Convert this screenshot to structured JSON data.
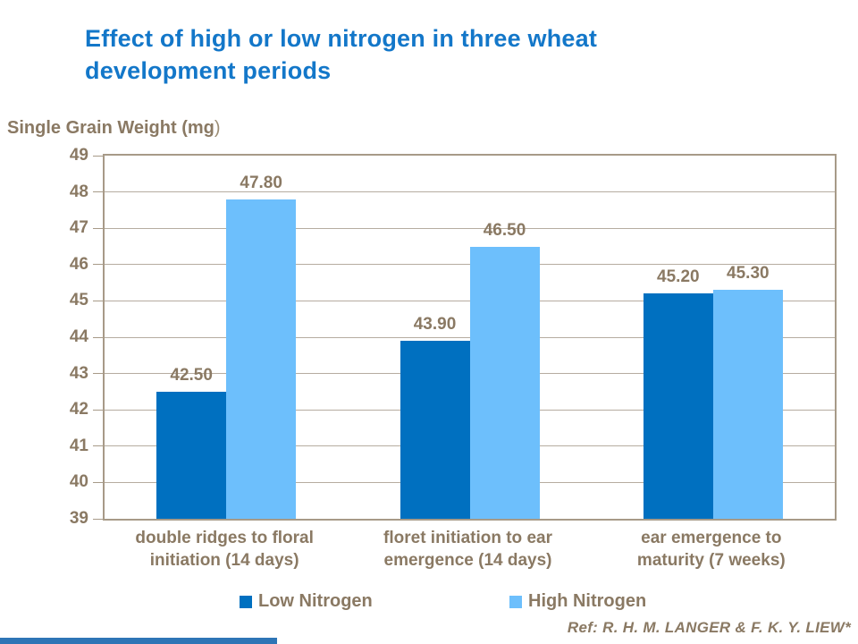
{
  "title": "Effect of high or low nitrogen in three wheat\ndevelopment periods",
  "axis_title": {
    "main": "Single Grain Weight (mg",
    "paren": ")"
  },
  "chart_data": {
    "type": "bar",
    "title": "Effect of high or low nitrogen in three wheat development periods",
    "ylabel": "Single Grain Weight (mg)",
    "xlabel": "",
    "ylim": [
      39,
      49
    ],
    "ytick_step": 1,
    "yticks": [
      39,
      40,
      41,
      42,
      43,
      44,
      45,
      46,
      47,
      48,
      49
    ],
    "grid": true,
    "legend_position": "bottom",
    "categories": [
      "double ridges to floral\ninitiation (14 days)",
      "floret initiation to ear\nemergence (14 days)",
      "ear emergence to\nmaturity (7 weeks)"
    ],
    "series": [
      {
        "name": "Low Nitrogen",
        "color": "#0070C0",
        "values": [
          42.5,
          43.9,
          45.2
        ],
        "labels": [
          "42.50",
          "43.90",
          "45.20"
        ]
      },
      {
        "name": "High Nitrogen",
        "color": "#6DBFFC",
        "values": [
          47.8,
          46.5,
          45.3
        ],
        "labels": [
          "47.80",
          "46.50",
          "45.30"
        ]
      }
    ]
  },
  "legend": {
    "items": [
      {
        "label": "Low Nitrogen",
        "color": "#0070C0"
      },
      {
        "label": "High Nitrogen",
        "color": "#6DBFFC"
      }
    ]
  },
  "reference": "Ref: R. H. M. LANGER & F. K. Y. LIEW*",
  "colors": {
    "title_text": "#1377C9",
    "axis_text": "#8A7963",
    "plot_border": "#A79A88",
    "gridline": "#B6ACA0",
    "accent_bar": "#2E75B6",
    "background": "#FFFFFF"
  }
}
